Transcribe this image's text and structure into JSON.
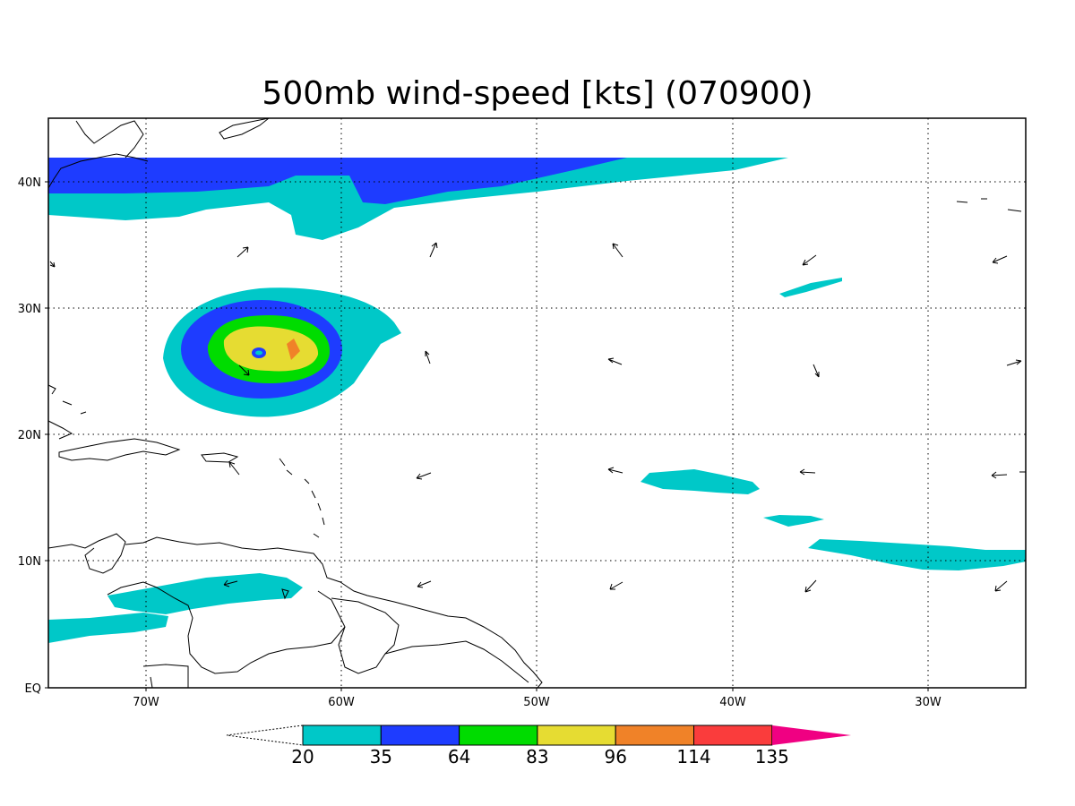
{
  "title": "500mb wind-speed [kts] (070900)",
  "map": {
    "lon_range": [
      -75,
      -25
    ],
    "lat_range": [
      0,
      45
    ],
    "lon_ticks": [
      {
        "value": -70,
        "label": "70W"
      },
      {
        "value": -60,
        "label": "60W"
      },
      {
        "value": -50,
        "label": "50W"
      },
      {
        "value": -40,
        "label": "40W"
      },
      {
        "value": -30,
        "label": "30W"
      }
    ],
    "lat_ticks": [
      {
        "value": 40,
        "label": "40N"
      },
      {
        "value": 30,
        "label": "30N"
      },
      {
        "value": 20,
        "label": "20N"
      },
      {
        "value": 10,
        "label": "10N"
      },
      {
        "value": 0,
        "label": "EQ"
      }
    ],
    "grid": "dotted"
  },
  "colorbar": {
    "labels": [
      "20",
      "35",
      "64",
      "83",
      "96",
      "114",
      "135"
    ],
    "colors": [
      "#00c8c8",
      "#1e3cff",
      "#00dc00",
      "#e6dc32",
      "#f08228",
      "#fa3c3c",
      "#f00082"
    ],
    "extend": "both"
  }
}
